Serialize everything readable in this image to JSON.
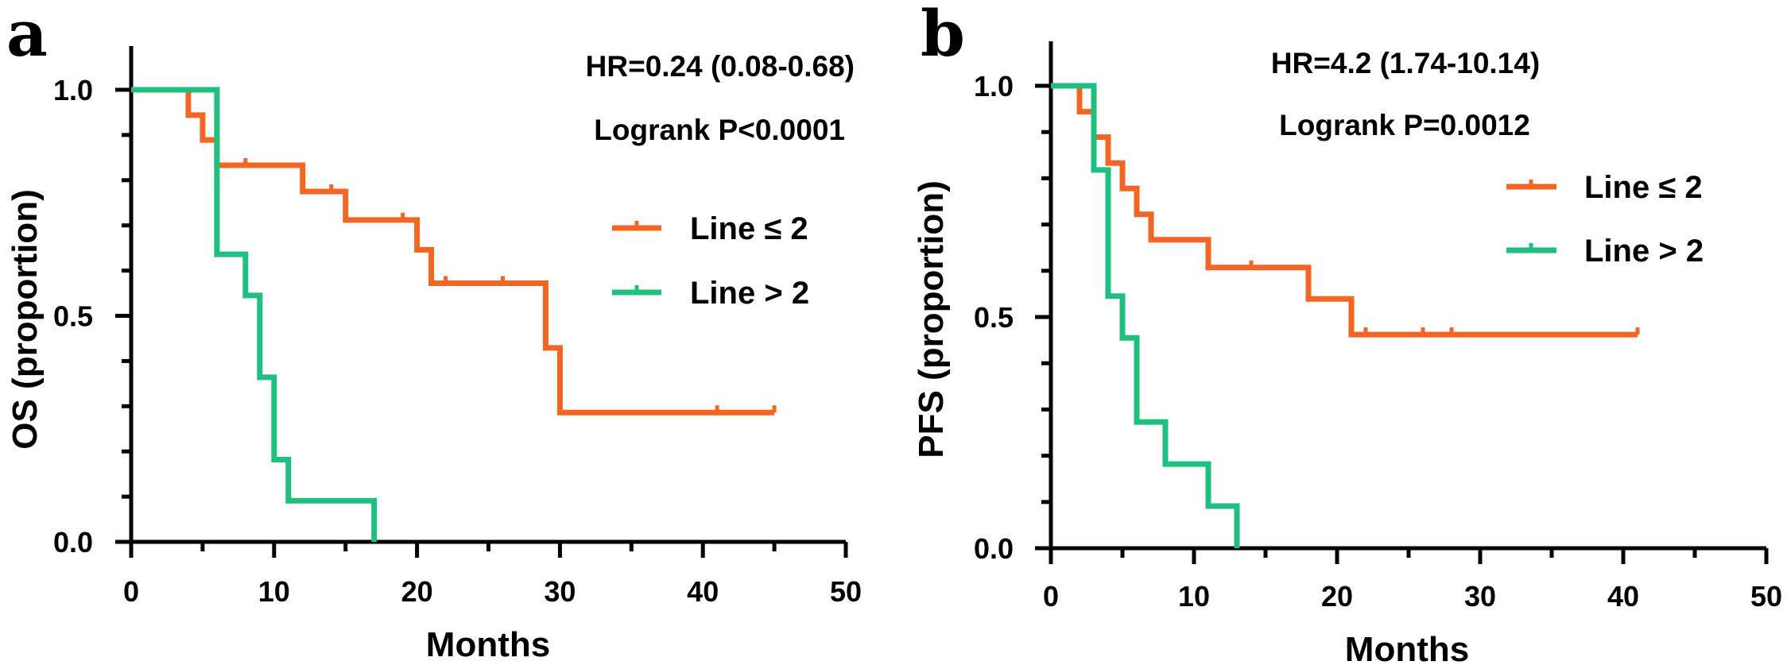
{
  "colors": {
    "line_le2": "#f26522",
    "line_gt2": "#1fbf7f"
  },
  "chart_data": [
    {
      "type": "line",
      "subtype": "kaplan-meier",
      "panel_label": "a",
      "ylabel": "OS (proportion)",
      "xlabel": "Months",
      "xlim": [
        0,
        50
      ],
      "ylim": [
        0,
        1
      ],
      "xticks": [
        0,
        10,
        20,
        30,
        40,
        50
      ],
      "xtick_labels": [
        "0",
        "10",
        "20",
        "30",
        "40",
        "50"
      ],
      "yticks": [
        0,
        0.5,
        1
      ],
      "ytick_labels": [
        "0.0",
        "0.5",
        "1.0"
      ],
      "annotations": [
        "HR=0.24 (0.08-0.68)",
        "Logrank P<0.0001"
      ],
      "legend_position": "right",
      "series": [
        {
          "name": "Line ≤ 2",
          "color_key": "line_le2",
          "steps": [
            [
              0,
              1.0
            ],
            [
              4,
              0.944
            ],
            [
              5,
              0.889
            ],
            [
              6,
              0.833
            ],
            [
              12,
              0.775
            ],
            [
              15,
              0.712
            ],
            [
              20,
              0.646
            ],
            [
              21,
              0.572
            ],
            [
              29,
              0.429
            ],
            [
              30,
              0.286
            ]
          ],
          "end_x": 45,
          "censored": [
            [
              8,
              0.833
            ],
            [
              14,
              0.775
            ],
            [
              19,
              0.712
            ],
            [
              22,
              0.572
            ],
            [
              26,
              0.572
            ],
            [
              41,
              0.286
            ],
            [
              45,
              0.286
            ]
          ]
        },
        {
          "name": "Line > 2",
          "color_key": "line_gt2",
          "steps": [
            [
              0,
              1.0
            ],
            [
              6,
              0.636
            ],
            [
              8,
              0.545
            ],
            [
              9,
              0.364
            ],
            [
              10,
              0.182
            ],
            [
              11,
              0.091
            ],
            [
              17,
              0.0
            ]
          ],
          "end_x": 17,
          "censored": []
        }
      ]
    },
    {
      "type": "line",
      "subtype": "kaplan-meier",
      "panel_label": "b",
      "ylabel": "PFS (proportion)",
      "xlabel": "Months",
      "xlim": [
        0,
        50
      ],
      "ylim": [
        0,
        1
      ],
      "xticks": [
        0,
        10,
        20,
        30,
        40,
        50
      ],
      "xtick_labels": [
        "0",
        "10",
        "20",
        "30",
        "40",
        "50"
      ],
      "yticks": [
        0,
        0.5,
        1
      ],
      "ytick_labels": [
        "0.0",
        "0.5",
        "1.0"
      ],
      "annotations": [
        "HR=4.2 (1.74-10.14)",
        "Logrank P=0.0012"
      ],
      "legend_position": "right",
      "series": [
        {
          "name": "Line ≤ 2",
          "color_key": "line_le2",
          "steps": [
            [
              0,
              1.0
            ],
            [
              2,
              0.944
            ],
            [
              3,
              0.889
            ],
            [
              4,
              0.833
            ],
            [
              5,
              0.778
            ],
            [
              6,
              0.722
            ],
            [
              7,
              0.667
            ],
            [
              11,
              0.607
            ],
            [
              18,
              0.539
            ],
            [
              21,
              0.462
            ]
          ],
          "end_x": 41,
          "censored": [
            [
              14,
              0.607
            ],
            [
              22,
              0.462
            ],
            [
              26,
              0.462
            ],
            [
              28,
              0.462
            ],
            [
              41,
              0.462
            ]
          ]
        },
        {
          "name": "Line > 2",
          "color_key": "line_gt2",
          "steps": [
            [
              0,
              1.0
            ],
            [
              3,
              0.818
            ],
            [
              4,
              0.545
            ],
            [
              5,
              0.455
            ],
            [
              6,
              0.273
            ],
            [
              8,
              0.182
            ],
            [
              11,
              0.091
            ],
            [
              13,
              0.0
            ]
          ],
          "end_x": 13,
          "censored": []
        }
      ]
    }
  ]
}
